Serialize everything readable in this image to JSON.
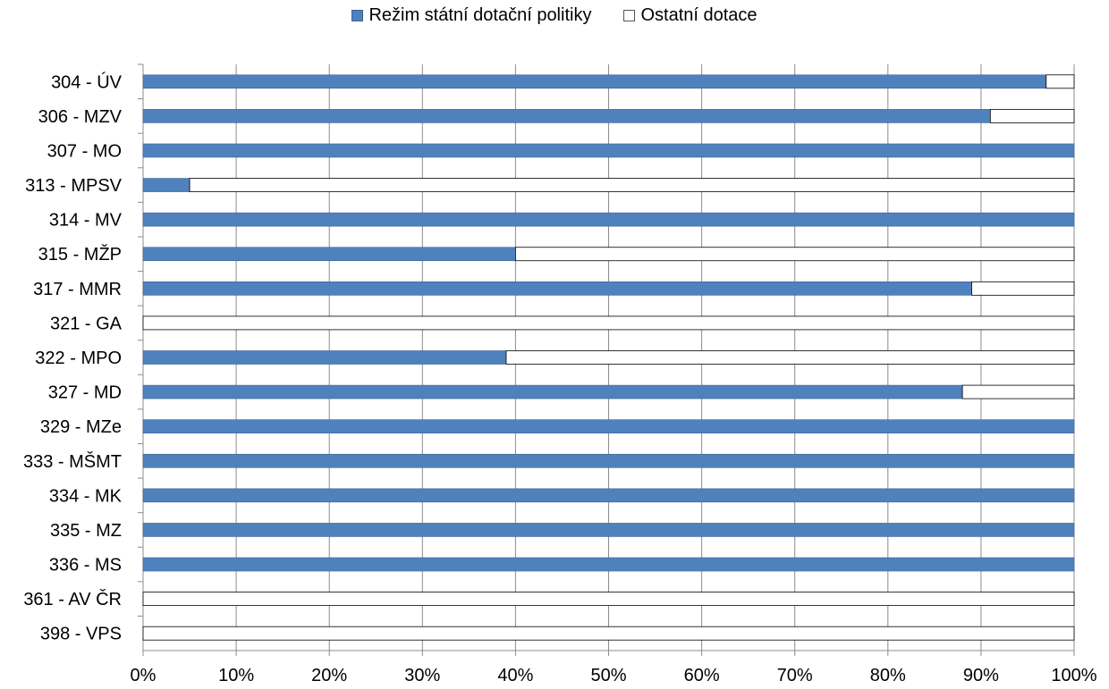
{
  "chart_data": {
    "type": "bar",
    "orientation": "horizontal",
    "stacked_percent": true,
    "categories": [
      "304 - ÚV",
      "306 - MZV",
      "307 - MO",
      "313 - MPSV",
      "314 - MV",
      "315 - MŽP",
      "317 - MMR",
      "321 - GA",
      "322 - MPO",
      "327 - MD",
      "329 - MZe",
      "333 - MŠMT",
      "334 - MK",
      "335 - MZ",
      "336 - MS",
      "361 - AV ČR",
      "398 - VPS"
    ],
    "series": [
      {
        "name": "Režim státní dotační politiky",
        "color": "#4f81bd",
        "values": [
          97,
          91,
          100,
          5,
          100,
          40,
          89,
          0,
          39,
          88,
          100,
          100,
          100,
          100,
          100,
          0,
          0
        ]
      },
      {
        "name": "Ostatní dotace",
        "color": "#ffffff",
        "values": [
          3,
          9,
          0,
          95,
          0,
          60,
          11,
          100,
          61,
          12,
          0,
          0,
          0,
          0,
          0,
          100,
          100
        ]
      }
    ],
    "x_ticks": [
      "0%",
      "10%",
      "20%",
      "30%",
      "40%",
      "50%",
      "60%",
      "70%",
      "80%",
      "90%",
      "100%"
    ],
    "xlim": [
      0,
      100
    ],
    "grid": true,
    "legend_position": "top"
  }
}
